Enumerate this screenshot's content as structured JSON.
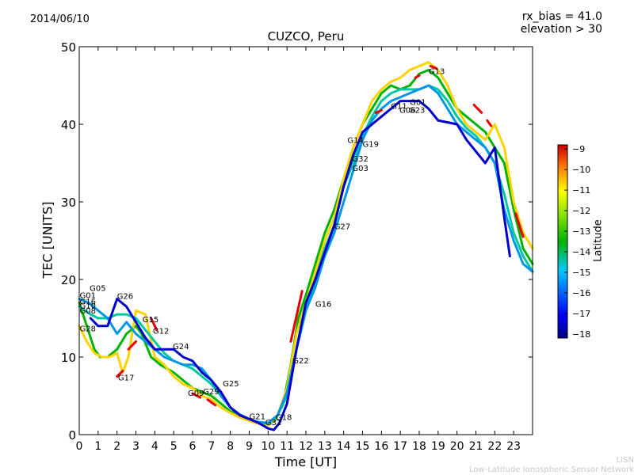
{
  "date_text": "2014/06/10",
  "bias_text": "rx_bias = 41.0",
  "elevation_text": "elevation > 30",
  "credit_line1": "LISN",
  "credit_line2": "Low-Latitude Ionospheric Sensor Network",
  "colorbar": {
    "label": "Latitude",
    "ticks": [
      -9,
      -10,
      -11,
      -12,
      -13,
      -14,
      -15,
      -16,
      -17,
      -18
    ],
    "range": [
      -18.2,
      -8.8
    ]
  },
  "chart_data": {
    "type": "line",
    "title": "CUZCO, Peru",
    "xlabel": "Time [UT]",
    "ylabel": "TEC [UNITS]",
    "xlim": [
      0,
      24
    ],
    "ylim": [
      0,
      50
    ],
    "xticks": [
      0,
      1,
      2,
      3,
      4,
      5,
      6,
      7,
      8,
      9,
      10,
      11,
      12,
      13,
      14,
      15,
      16,
      17,
      18,
      19,
      20,
      21,
      22,
      23
    ],
    "yticks": [
      0,
      10,
      20,
      30,
      40,
      50
    ],
    "grid": false,
    "series": [
      {
        "color": "#00b400",
        "points": [
          [
            0,
            17
          ],
          [
            0.4,
            14
          ],
          [
            0.8,
            11
          ],
          [
            1.1,
            10
          ],
          [
            1.5,
            10
          ],
          [
            2,
            11
          ],
          [
            2.5,
            13
          ],
          [
            3,
            14
          ],
          [
            3.3,
            13
          ],
          [
            3.8,
            10
          ],
          [
            4.3,
            9
          ],
          [
            5,
            8
          ],
          [
            5.5,
            7
          ],
          [
            6,
            6
          ],
          [
            6.5,
            5.5
          ],
          [
            7,
            5
          ],
          [
            7.5,
            4
          ],
          [
            8,
            3
          ],
          [
            8.5,
            2.5
          ],
          [
            9,
            2
          ],
          [
            9.5,
            1.5
          ],
          [
            10,
            1.2
          ],
          [
            10.4,
            2
          ],
          [
            10.8,
            4
          ],
          [
            11.2,
            9
          ],
          [
            11.6,
            15
          ],
          [
            12,
            18
          ],
          [
            12.5,
            22
          ],
          [
            13,
            26
          ],
          [
            13.5,
            29
          ],
          [
            14,
            33
          ],
          [
            14.5,
            37
          ],
          [
            15,
            40
          ],
          [
            15.5,
            42
          ],
          [
            16,
            44
          ],
          [
            16.5,
            45
          ],
          [
            17,
            44.5
          ],
          [
            17.5,
            45
          ],
          [
            18,
            46.5
          ],
          [
            18.5,
            47
          ],
          [
            19,
            46
          ],
          [
            19.5,
            44
          ],
          [
            20,
            42
          ],
          [
            20.5,
            41
          ],
          [
            21,
            40
          ],
          [
            21.5,
            39
          ],
          [
            22,
            37
          ],
          [
            22.5,
            35
          ],
          [
            23,
            29
          ],
          [
            23.5,
            24
          ],
          [
            24,
            22
          ]
        ]
      },
      {
        "color": "#ffd200",
        "points": [
          [
            0,
            14
          ],
          [
            0.4,
            12
          ],
          [
            0.8,
            10.5
          ],
          [
            1.2,
            10
          ],
          [
            1.6,
            10
          ],
          [
            2,
            10.5
          ],
          [
            2.3,
            8
          ],
          [
            2.6,
            10
          ],
          [
            3,
            16
          ],
          [
            3.5,
            15.5
          ],
          [
            4,
            10
          ],
          [
            4.5,
            9
          ],
          [
            5,
            7.5
          ],
          [
            5.5,
            6.5
          ],
          [
            6,
            6
          ],
          [
            6.5,
            5
          ],
          [
            7,
            4.5
          ],
          [
            7.5,
            3.5
          ],
          [
            8,
            2.8
          ],
          [
            8.5,
            2.2
          ],
          [
            9,
            1.8
          ],
          [
            9.5,
            1.4
          ],
          [
            10,
            1.2
          ],
          [
            10.5,
            2.5
          ],
          [
            11,
            6
          ],
          [
            11.5,
            13
          ],
          [
            12,
            17
          ],
          [
            12.5,
            21
          ],
          [
            13,
            25
          ],
          [
            13.5,
            28
          ],
          [
            14,
            33
          ],
          [
            14.5,
            37
          ],
          [
            15,
            40
          ],
          [
            15.5,
            43
          ],
          [
            16,
            44.5
          ],
          [
            16.5,
            45.5
          ],
          [
            17,
            46
          ],
          [
            17.5,
            47
          ],
          [
            18,
            47.5
          ],
          [
            18.5,
            48
          ],
          [
            19,
            47
          ],
          [
            19.5,
            45
          ],
          [
            20,
            42
          ],
          [
            20.5,
            40
          ],
          [
            21,
            39
          ],
          [
            21.5,
            38
          ],
          [
            22,
            40
          ],
          [
            22.5,
            37
          ],
          [
            23,
            30
          ],
          [
            23.5,
            26
          ],
          [
            24,
            24
          ]
        ]
      },
      {
        "color": "#00c8a0",
        "points": [
          [
            0,
            16.5
          ],
          [
            0.3,
            16
          ],
          [
            0.6,
            15.5
          ],
          [
            1,
            15
          ],
          [
            1.5,
            15
          ],
          [
            2,
            15.5
          ],
          [
            2.5,
            15.5
          ],
          [
            3,
            15
          ],
          [
            3.5,
            13.5
          ],
          [
            4,
            12
          ],
          [
            4.5,
            10.5
          ],
          [
            5,
            9.5
          ],
          [
            5.5,
            9
          ],
          [
            6,
            8.5
          ],
          [
            6.5,
            7.5
          ],
          [
            7,
            6.5
          ],
          [
            7.5,
            5
          ],
          [
            8,
            3.5
          ],
          [
            8.5,
            2.5
          ],
          [
            9,
            2
          ],
          [
            9.5,
            1.6
          ],
          [
            10,
            1.4
          ],
          [
            10.5,
            2.5
          ],
          [
            11,
            5
          ],
          [
            11.5,
            11
          ],
          [
            12,
            16
          ],
          [
            12.5,
            20
          ],
          [
            13,
            24
          ],
          [
            13.5,
            27
          ],
          [
            14,
            32
          ],
          [
            14.5,
            35
          ],
          [
            15,
            38.5
          ],
          [
            15.5,
            41
          ],
          [
            16,
            43
          ],
          [
            16.5,
            44
          ],
          [
            17,
            44.5
          ],
          [
            17.5,
            44.5
          ],
          [
            18,
            44.5
          ],
          [
            18.5,
            45
          ],
          [
            19,
            44.5
          ],
          [
            19.5,
            43
          ],
          [
            20,
            41
          ],
          [
            20.5,
            39.5
          ],
          [
            21,
            38.5
          ],
          [
            21.5,
            37
          ],
          [
            22,
            35
          ],
          [
            22.5,
            31
          ],
          [
            23,
            26
          ],
          [
            23.5,
            23
          ],
          [
            24,
            21
          ]
        ]
      },
      {
        "color": "#0096e6",
        "points": [
          [
            0,
            17.5
          ],
          [
            0.5,
            17
          ],
          [
            1,
            16
          ],
          [
            1.5,
            15
          ],
          [
            2,
            13
          ],
          [
            2.5,
            14.5
          ],
          [
            3,
            13
          ],
          [
            3.5,
            12
          ],
          [
            4,
            11
          ],
          [
            4.5,
            10
          ],
          [
            5,
            9.5
          ],
          [
            5.5,
            9
          ],
          [
            6,
            9
          ],
          [
            6.5,
            8.5
          ],
          [
            7,
            7
          ],
          [
            7.5,
            5
          ],
          [
            8,
            3.5
          ],
          [
            8.5,
            2.6
          ],
          [
            9,
            2
          ],
          [
            9.5,
            1.6
          ],
          [
            10,
            1.5
          ],
          [
            10.5,
            2.5
          ],
          [
            11,
            5.5
          ],
          [
            11.5,
            11
          ],
          [
            12,
            16
          ],
          [
            12.5,
            19
          ],
          [
            13,
            23
          ],
          [
            13.5,
            26
          ],
          [
            14,
            30
          ],
          [
            14.5,
            34
          ],
          [
            15,
            38
          ],
          [
            15.5,
            40.5
          ],
          [
            16,
            42
          ],
          [
            16.5,
            43
          ],
          [
            17,
            43.5
          ],
          [
            17.5,
            44
          ],
          [
            18,
            44.5
          ],
          [
            18.5,
            45
          ],
          [
            19,
            44
          ],
          [
            19.5,
            42
          ],
          [
            20,
            40
          ],
          [
            20.5,
            39
          ],
          [
            21,
            38
          ],
          [
            21.5,
            37
          ],
          [
            22,
            35
          ],
          [
            22.5,
            29
          ],
          [
            23,
            25
          ],
          [
            23.5,
            22
          ],
          [
            24,
            21
          ]
        ]
      },
      {
        "color": "#0000c8",
        "points": [
          [
            0.6,
            15
          ],
          [
            1,
            14
          ],
          [
            1.5,
            14
          ],
          [
            2,
            17.5
          ],
          [
            2.5,
            16.5
          ],
          [
            3,
            14.5
          ],
          [
            3.5,
            12.5
          ],
          [
            4,
            11
          ],
          [
            5,
            11
          ],
          [
            5.5,
            10
          ],
          [
            6,
            9.5
          ],
          [
            6.5,
            8
          ],
          [
            7,
            7
          ],
          [
            7.5,
            5.5
          ],
          [
            8,
            3.5
          ],
          [
            8.5,
            2.5
          ],
          [
            9,
            2
          ],
          [
            9.5,
            1.5
          ],
          [
            10,
            0.8
          ],
          [
            10.3,
            0.6
          ],
          [
            10.6,
            1.5
          ],
          [
            11,
            4
          ],
          [
            11.5,
            11
          ],
          [
            12,
            17
          ],
          [
            12.5,
            20
          ],
          [
            13.5,
            27
          ],
          [
            14,
            32
          ],
          [
            14.5,
            36
          ],
          [
            15,
            39
          ],
          [
            17,
            43
          ],
          [
            17.5,
            43
          ],
          [
            18,
            43
          ],
          [
            18.5,
            42
          ],
          [
            19,
            40.5
          ],
          [
            20,
            40
          ],
          [
            20.5,
            38
          ],
          [
            21,
            36.5
          ],
          [
            21.5,
            35
          ],
          [
            22,
            37
          ],
          [
            22.5,
            28
          ],
          [
            22.8,
            23
          ]
        ]
      },
      {
        "color": "#e60000",
        "points": [
          [
            2,
            7.5
          ],
          [
            2.3,
            8.2
          ]
        ]
      },
      {
        "color": "#e60000",
        "points": [
          [
            2.6,
            11
          ],
          [
            3,
            12
          ]
        ]
      },
      {
        "color": "#e60000",
        "points": [
          [
            3.8,
            15
          ],
          [
            4.1,
            13.5
          ]
        ]
      },
      {
        "color": "#e60000",
        "points": [
          [
            6,
            5.3
          ],
          [
            6.4,
            4.8
          ]
        ]
      },
      {
        "color": "#e60000",
        "points": [
          [
            6.8,
            4.5
          ],
          [
            7.2,
            3.8
          ]
        ]
      },
      {
        "color": "#e60000",
        "points": [
          [
            11.2,
            12
          ],
          [
            11.8,
            18.5
          ]
        ]
      },
      {
        "color": "#e60000",
        "points": [
          [
            15.7,
            41.5
          ],
          [
            16,
            41.8
          ]
        ]
      },
      {
        "color": "#e60000",
        "points": [
          [
            17.8,
            46
          ],
          [
            18,
            46.3
          ]
        ]
      },
      {
        "color": "#e60000",
        "points": [
          [
            18.6,
            47.5
          ],
          [
            18.9,
            47.2
          ]
        ]
      },
      {
        "color": "#e60000",
        "points": [
          [
            20.9,
            42.5
          ],
          [
            21.3,
            41.5
          ]
        ]
      },
      {
        "color": "#e60000",
        "points": [
          [
            21.6,
            40.5
          ],
          [
            21.8,
            39.8
          ]
        ]
      },
      {
        "color": "#e60000",
        "points": [
          [
            23.1,
            28.5
          ],
          [
            23.3,
            27
          ],
          [
            23.5,
            25.5
          ]
        ]
      }
    ],
    "annotations": [
      {
        "text": "G05",
        "x": 0.55,
        "y": 18.5
      },
      {
        "text": "G01",
        "x": 0.02,
        "y": 17.6
      },
      {
        "text": "G16",
        "x": 0.02,
        "y": 16.8
      },
      {
        "text": "G10",
        "x": 0.02,
        "y": 16.3
      },
      {
        "text": "G08",
        "x": 0.02,
        "y": 15.6
      },
      {
        "text": "G26",
        "x": 2.0,
        "y": 17.5
      },
      {
        "text": "G15",
        "x": 3.35,
        "y": 14.5
      },
      {
        "text": "G28",
        "x": 0.02,
        "y": 13.3
      },
      {
        "text": "G12",
        "x": 3.9,
        "y": 13.0
      },
      {
        "text": "G24",
        "x": 4.95,
        "y": 11.0
      },
      {
        "text": "G17",
        "x": 2.05,
        "y": 7.0
      },
      {
        "text": "G25",
        "x": 7.6,
        "y": 6.2
      },
      {
        "text": "G29",
        "x": 6.55,
        "y": 5.2
      },
      {
        "text": "G09",
        "x": 5.75,
        "y": 5.0
      },
      {
        "text": "G21",
        "x": 9.0,
        "y": 2.0
      },
      {
        "text": "G31",
        "x": 9.85,
        "y": 1.2
      },
      {
        "text": "G18",
        "x": 10.4,
        "y": 1.9
      },
      {
        "text": "G22",
        "x": 11.3,
        "y": 9.2
      },
      {
        "text": "G16",
        "x": 12.5,
        "y": 16.5
      },
      {
        "text": "G27",
        "x": 13.5,
        "y": 26.5
      },
      {
        "text": "G14",
        "x": 14.2,
        "y": 37.6
      },
      {
        "text": "G19",
        "x": 15.0,
        "y": 37.1
      },
      {
        "text": "G32",
        "x": 14.45,
        "y": 35.2
      },
      {
        "text": "G03",
        "x": 14.45,
        "y": 34.0
      },
      {
        "text": "G13",
        "x": 18.5,
        "y": 46.5
      },
      {
        "text": "G01",
        "x": 17.5,
        "y": 42.5
      },
      {
        "text": "G11",
        "x": 16.5,
        "y": 42.0
      },
      {
        "text": "G06",
        "x": 16.95,
        "y": 41.5
      },
      {
        "text": "G23",
        "x": 17.45,
        "y": 41.5
      }
    ]
  }
}
